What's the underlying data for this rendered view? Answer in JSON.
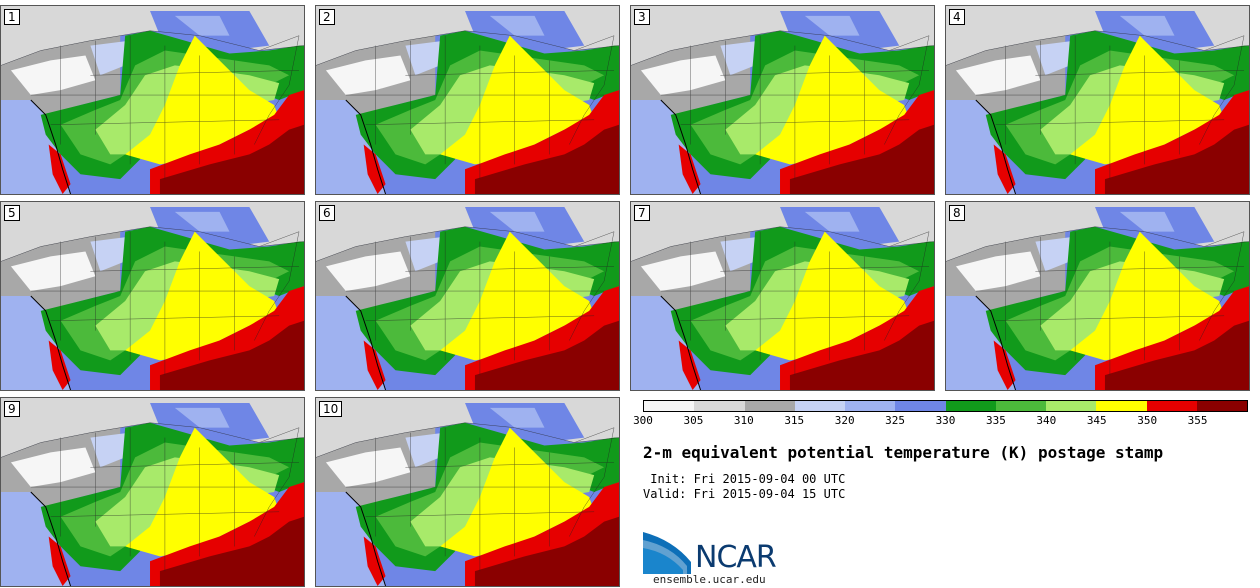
{
  "panels": [
    {
      "label": "1"
    },
    {
      "label": "2"
    },
    {
      "label": "3"
    },
    {
      "label": "4"
    },
    {
      "label": "5"
    },
    {
      "label": "6"
    },
    {
      "label": "7"
    },
    {
      "label": "8"
    },
    {
      "label": "9"
    },
    {
      "label": "10"
    }
  ],
  "colorbar": {
    "ticks": [
      "300",
      "305",
      "310",
      "315",
      "320",
      "325",
      "330",
      "335",
      "340",
      "345",
      "350",
      "355"
    ],
    "colors": [
      "#f6f6f6",
      "#d8d8d8",
      "#a8a8a8",
      "#c6d2f4",
      "#9fb2f0",
      "#6f86e6",
      "#119a1b",
      "#4cba3b",
      "#a8ea6a",
      "#ffff00",
      "#e60000",
      "#8a0000"
    ]
  },
  "title": "2-m equivalent potential temperature (K) postage stamp",
  "init_line": " Init: Fri 2015-09-04 00 UTC",
  "valid_line": "Valid: Fri 2015-09-04 15 UTC",
  "logo": {
    "text": "NCAR",
    "site": "ensemble.ucar.edu"
  }
}
